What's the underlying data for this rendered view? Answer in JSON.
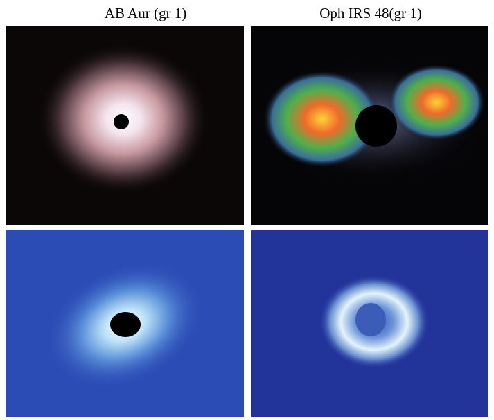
{
  "panels": [
    {
      "label": "AB Aur (gr 1)"
    },
    {
      "label": "Oph IRS 48(gr 1)"
    }
  ]
}
